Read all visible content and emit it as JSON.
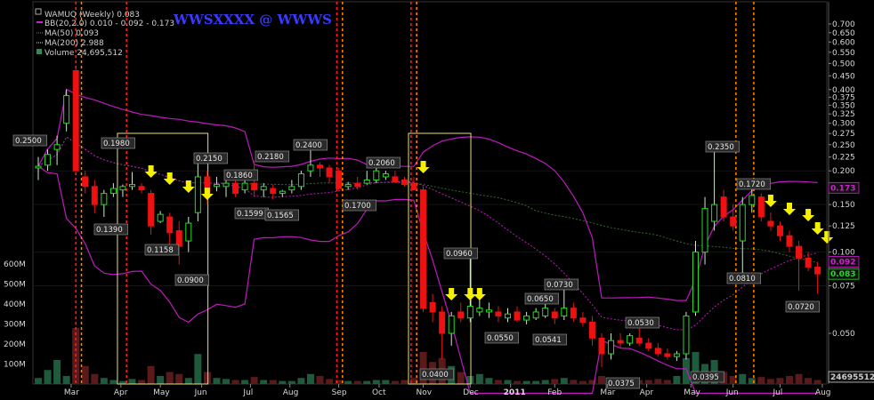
{
  "chart_data": {
    "type": "candlestick",
    "title": "WAMUQ (Weekly) 0.083",
    "watermark": "WWSXXXX @ WWWS",
    "legend": [
      {
        "text": "BB(20,2.0) 0.010 - 0.092 - 0.173",
        "color": "#d020d0"
      },
      {
        "text": "MA(50) 0.093",
        "color": "#7c7c7c"
      },
      {
        "text": "MA(200) 2.988",
        "color": "#e0e0e0"
      },
      {
        "text": "Volume 24,695,512",
        "color": "#2e8b57"
      }
    ],
    "price_axis": {
      "scale": "log",
      "ticks": [
        "0.700",
        "0.650",
        "0.600",
        "0.550",
        "0.500",
        "0.450",
        "0.400",
        "0.375",
        "0.350",
        "0.325",
        "0.300",
        "0.275",
        "0.250",
        "0.225",
        "0.200",
        "0.175",
        "0.150",
        "0.125",
        "0.100",
        "0.075",
        "0.050"
      ]
    },
    "volume_axis": {
      "ticks": [
        "600M",
        "500M",
        "400M",
        "300M",
        "200M",
        "100M"
      ]
    },
    "x_labels": [
      "Mar",
      "Apr",
      "May",
      "Jun",
      "Jul",
      "Aug",
      "Sep",
      "Oct",
      "Nov",
      "Dec",
      "2011",
      "Feb",
      "Mar",
      "Apr",
      "May",
      "Jun",
      "Jul",
      "Aug"
    ],
    "price_labels": [
      "0.2500",
      "0.1980",
      "0.1390",
      "0.1158",
      "0.0900",
      "0.2150",
      "0.1860",
      "0.2180",
      "0.1599",
      "0.1565",
      "0.2400",
      "0.1700",
      "0.2060",
      "0.0960",
      "0.0400",
      "0.0650",
      "0.0730",
      "0.0550",
      "0.0541",
      "0.0530",
      "0.0375",
      "0.0395",
      "0.2350",
      "0.1720",
      "0.0810",
      "0.0720"
    ],
    "side_labels": [
      {
        "text": "0.173",
        "color": "#d020d0"
      },
      {
        "text": "0.092",
        "color": "#d020d0"
      },
      {
        "text": "0.083",
        "color": "#22dd22"
      },
      {
        "text": "24695512",
        "color": "#cccccc"
      }
    ],
    "candles": [
      {
        "o": 0.205,
        "h": 0.225,
        "l": 0.185,
        "c": 0.208
      },
      {
        "o": 0.21,
        "h": 0.24,
        "l": 0.2,
        "c": 0.23
      },
      {
        "o": 0.24,
        "h": 0.27,
        "l": 0.21,
        "c": 0.25
      },
      {
        "o": 0.3,
        "h": 0.4,
        "l": 0.28,
        "c": 0.38
      },
      {
        "o": 0.47,
        "h": 0.48,
        "l": 0.2,
        "c": 0.2
      },
      {
        "o": 0.19,
        "h": 0.2,
        "l": 0.165,
        "c": 0.175
      },
      {
        "o": 0.175,
        "h": 0.185,
        "l": 0.139,
        "c": 0.15
      },
      {
        "o": 0.15,
        "h": 0.17,
        "l": 0.135,
        "c": 0.165
      },
      {
        "o": 0.165,
        "h": 0.18,
        "l": 0.16,
        "c": 0.172
      },
      {
        "o": 0.17,
        "h": 0.178,
        "l": 0.16,
        "c": 0.175
      },
      {
        "o": 0.175,
        "h": 0.198,
        "l": 0.17,
        "c": 0.178
      },
      {
        "o": 0.175,
        "h": 0.18,
        "l": 0.165,
        "c": 0.17
      },
      {
        "o": 0.165,
        "h": 0.17,
        "l": 0.116,
        "c": 0.125
      },
      {
        "o": 0.13,
        "h": 0.142,
        "l": 0.128,
        "c": 0.138
      },
      {
        "o": 0.135,
        "h": 0.14,
        "l": 0.1,
        "c": 0.118
      },
      {
        "o": 0.12,
        "h": 0.13,
        "l": 0.09,
        "c": 0.105
      },
      {
        "o": 0.11,
        "h": 0.135,
        "l": 0.1,
        "c": 0.128
      },
      {
        "o": 0.14,
        "h": 0.215,
        "l": 0.13,
        "c": 0.19
      },
      {
        "o": 0.19,
        "h": 0.2,
        "l": 0.15,
        "c": 0.165
      },
      {
        "o": 0.175,
        "h": 0.19,
        "l": 0.168,
        "c": 0.178
      },
      {
        "o": 0.175,
        "h": 0.186,
        "l": 0.16,
        "c": 0.18
      },
      {
        "o": 0.18,
        "h": 0.19,
        "l": 0.16,
        "c": 0.165
      },
      {
        "o": 0.17,
        "h": 0.2,
        "l": 0.165,
        "c": 0.18
      },
      {
        "o": 0.18,
        "h": 0.218,
        "l": 0.16,
        "c": 0.17
      },
      {
        "o": 0.17,
        "h": 0.18,
        "l": 0.16,
        "c": 0.175
      },
      {
        "o": 0.172,
        "h": 0.178,
        "l": 0.1565,
        "c": 0.165
      },
      {
        "o": 0.165,
        "h": 0.17,
        "l": 0.16,
        "c": 0.168
      },
      {
        "o": 0.17,
        "h": 0.185,
        "l": 0.165,
        "c": 0.175
      },
      {
        "o": 0.175,
        "h": 0.2,
        "l": 0.17,
        "c": 0.195
      },
      {
        "o": 0.2,
        "h": 0.24,
        "l": 0.19,
        "c": 0.21
      },
      {
        "o": 0.21,
        "h": 0.215,
        "l": 0.19,
        "c": 0.205
      },
      {
        "o": 0.205,
        "h": 0.21,
        "l": 0.18,
        "c": 0.19
      },
      {
        "o": 0.2,
        "h": 0.205,
        "l": 0.17,
        "c": 0.172
      },
      {
        "o": 0.175,
        "h": 0.182,
        "l": 0.17,
        "c": 0.178
      },
      {
        "o": 0.18,
        "h": 0.19,
        "l": 0.17,
        "c": 0.175
      },
      {
        "o": 0.18,
        "h": 0.2,
        "l": 0.178,
        "c": 0.185
      },
      {
        "o": 0.185,
        "h": 0.206,
        "l": 0.18,
        "c": 0.2
      },
      {
        "o": 0.19,
        "h": 0.2,
        "l": 0.185,
        "c": 0.195
      },
      {
        "o": 0.19,
        "h": 0.2,
        "l": 0.18,
        "c": 0.182
      },
      {
        "o": 0.185,
        "h": 0.19,
        "l": 0.175,
        "c": 0.178
      },
      {
        "o": 0.18,
        "h": 0.19,
        "l": 0.17,
        "c": 0.17
      },
      {
        "o": 0.17,
        "h": 0.175,
        "l": 0.06,
        "c": 0.062
      },
      {
        "o": 0.065,
        "h": 0.07,
        "l": 0.055,
        "c": 0.06
      },
      {
        "o": 0.06,
        "h": 0.063,
        "l": 0.04,
        "c": 0.05
      },
      {
        "o": 0.05,
        "h": 0.06,
        "l": 0.045,
        "c": 0.058
      },
      {
        "o": 0.06,
        "h": 0.065,
        "l": 0.055,
        "c": 0.057
      },
      {
        "o": 0.057,
        "h": 0.096,
        "l": 0.055,
        "c": 0.063
      },
      {
        "o": 0.06,
        "h": 0.07,
        "l": 0.058,
        "c": 0.062
      },
      {
        "o": 0.06,
        "h": 0.065,
        "l": 0.057,
        "c": 0.061
      },
      {
        "o": 0.06,
        "h": 0.063,
        "l": 0.055,
        "c": 0.058
      },
      {
        "o": 0.057,
        "h": 0.062,
        "l": 0.055,
        "c": 0.059
      },
      {
        "o": 0.06,
        "h": 0.063,
        "l": 0.055,
        "c": 0.056
      },
      {
        "o": 0.056,
        "h": 0.06,
        "l": 0.054,
        "c": 0.058
      },
      {
        "o": 0.057,
        "h": 0.062,
        "l": 0.056,
        "c": 0.06
      },
      {
        "o": 0.058,
        "h": 0.065,
        "l": 0.057,
        "c": 0.062
      },
      {
        "o": 0.06,
        "h": 0.062,
        "l": 0.0541,
        "c": 0.057
      },
      {
        "o": 0.058,
        "h": 0.073,
        "l": 0.056,
        "c": 0.062
      },
      {
        "o": 0.062,
        "h": 0.065,
        "l": 0.055,
        "c": 0.057
      },
      {
        "o": 0.057,
        "h": 0.06,
        "l": 0.053,
        "c": 0.055
      },
      {
        "o": 0.055,
        "h": 0.058,
        "l": 0.045,
        "c": 0.048
      },
      {
        "o": 0.048,
        "h": 0.05,
        "l": 0.0375,
        "c": 0.042
      },
      {
        "o": 0.042,
        "h": 0.05,
        "l": 0.04,
        "c": 0.047
      },
      {
        "o": 0.047,
        "h": 0.05,
        "l": 0.044,
        "c": 0.046
      },
      {
        "o": 0.046,
        "h": 0.05,
        "l": 0.045,
        "c": 0.049
      },
      {
        "o": 0.048,
        "h": 0.053,
        "l": 0.045,
        "c": 0.046
      },
      {
        "o": 0.046,
        "h": 0.048,
        "l": 0.043,
        "c": 0.044
      },
      {
        "o": 0.044,
        "h": 0.046,
        "l": 0.041,
        "c": 0.042
      },
      {
        "o": 0.042,
        "h": 0.044,
        "l": 0.04,
        "c": 0.041
      },
      {
        "o": 0.041,
        "h": 0.043,
        "l": 0.0395,
        "c": 0.042
      },
      {
        "o": 0.042,
        "h": 0.06,
        "l": 0.04,
        "c": 0.058
      },
      {
        "o": 0.06,
        "h": 0.11,
        "l": 0.058,
        "c": 0.1
      },
      {
        "o": 0.1,
        "h": 0.16,
        "l": 0.09,
        "c": 0.145
      },
      {
        "o": 0.13,
        "h": 0.235,
        "l": 0.12,
        "c": 0.15
      },
      {
        "o": 0.16,
        "h": 0.17,
        "l": 0.13,
        "c": 0.135
      },
      {
        "o": 0.135,
        "h": 0.15,
        "l": 0.12,
        "c": 0.125
      },
      {
        "o": 0.11,
        "h": 0.16,
        "l": 0.081,
        "c": 0.15
      },
      {
        "o": 0.15,
        "h": 0.172,
        "l": 0.14,
        "c": 0.162
      },
      {
        "o": 0.16,
        "h": 0.165,
        "l": 0.13,
        "c": 0.135
      },
      {
        "o": 0.13,
        "h": 0.14,
        "l": 0.12,
        "c": 0.125
      },
      {
        "o": 0.125,
        "h": 0.13,
        "l": 0.11,
        "c": 0.115
      },
      {
        "o": 0.115,
        "h": 0.12,
        "l": 0.1,
        "c": 0.105
      },
      {
        "o": 0.105,
        "h": 0.11,
        "l": 0.072,
        "c": 0.095
      },
      {
        "o": 0.095,
        "h": 0.1,
        "l": 0.085,
        "c": 0.088
      },
      {
        "o": 0.088,
        "h": 0.092,
        "l": 0.07,
        "c": 0.083
      }
    ],
    "volume_M": [
      30,
      70,
      120,
      40,
      280,
      90,
      50,
      30,
      20,
      15,
      25,
      20,
      90,
      40,
      60,
      50,
      30,
      150,
      60,
      30,
      25,
      20,
      20,
      35,
      20,
      20,
      15,
      15,
      30,
      50,
      40,
      25,
      20,
      15,
      15,
      15,
      20,
      20,
      15,
      20,
      30,
      160,
      110,
      130,
      90,
      60,
      40,
      50,
      30,
      20,
      20,
      15,
      15,
      15,
      20,
      25,
      30,
      20,
      15,
      20,
      40,
      20,
      20,
      15,
      20,
      20,
      25,
      20,
      40,
      130,
      160,
      100,
      120,
      60,
      40,
      50,
      30,
      35,
      25,
      30,
      40,
      50,
      30,
      20
    ]
  }
}
